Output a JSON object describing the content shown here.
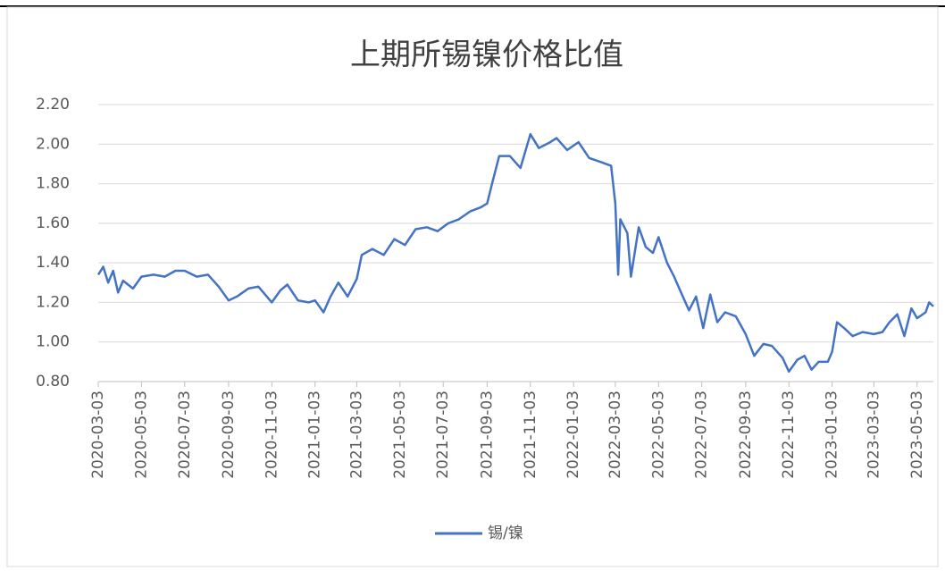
{
  "chart_data": {
    "type": "line",
    "title": "上期所锡镍价格比值",
    "x": [
      "2020-03-03",
      "2020-03-10",
      "2020-03-17",
      "2020-03-24",
      "2020-03-31",
      "2020-04-07",
      "2020-04-21",
      "2020-05-03",
      "2020-05-20",
      "2020-06-05",
      "2020-06-20",
      "2020-07-03",
      "2020-07-20",
      "2020-08-05",
      "2020-08-20",
      "2020-09-03",
      "2020-09-15",
      "2020-10-01",
      "2020-10-15",
      "2020-11-03",
      "2020-11-15",
      "2020-11-25",
      "2020-12-10",
      "2020-12-25",
      "2021-01-03",
      "2021-01-15",
      "2021-01-25",
      "2021-02-05",
      "2021-02-18",
      "2021-03-03",
      "2021-03-10",
      "2021-03-25",
      "2021-04-10",
      "2021-04-25",
      "2021-05-10",
      "2021-05-25",
      "2021-06-10",
      "2021-06-25",
      "2021-07-10",
      "2021-07-25",
      "2021-08-10",
      "2021-08-25",
      "2021-09-03",
      "2021-09-10",
      "2021-09-20",
      "2021-10-05",
      "2021-10-20",
      "2021-11-03",
      "2021-11-15",
      "2021-12-01",
      "2021-12-10",
      "2021-12-25",
      "2022-01-10",
      "2022-01-25",
      "2022-02-10",
      "2022-02-25",
      "2022-03-03",
      "2022-03-07",
      "2022-03-10",
      "2022-03-20",
      "2022-03-25",
      "2022-04-05",
      "2022-04-15",
      "2022-04-25",
      "2022-05-03",
      "2022-05-15",
      "2022-05-25",
      "2022-06-05",
      "2022-06-15",
      "2022-06-25",
      "2022-07-05",
      "2022-07-15",
      "2022-07-25",
      "2022-08-05",
      "2022-08-20",
      "2022-09-03",
      "2022-09-15",
      "2022-09-28",
      "2022-10-10",
      "2022-10-25",
      "2022-11-03",
      "2022-11-15",
      "2022-11-25",
      "2022-12-05",
      "2022-12-15",
      "2022-12-28",
      "2023-01-03",
      "2023-01-10",
      "2023-01-20",
      "2023-02-01",
      "2023-02-15",
      "2023-03-03",
      "2023-03-15",
      "2023-03-25",
      "2023-04-05",
      "2023-04-15",
      "2023-04-25",
      "2023-05-03",
      "2023-05-15",
      "2023-05-20",
      "2023-05-26"
    ],
    "series": [
      {
        "name": "锡/镍",
        "color": "#4472c4",
        "values": [
          1.34,
          1.38,
          1.3,
          1.36,
          1.25,
          1.31,
          1.27,
          1.33,
          1.34,
          1.33,
          1.36,
          1.36,
          1.33,
          1.34,
          1.28,
          1.21,
          1.23,
          1.27,
          1.28,
          1.2,
          1.26,
          1.29,
          1.21,
          1.2,
          1.21,
          1.15,
          1.23,
          1.3,
          1.23,
          1.32,
          1.44,
          1.47,
          1.44,
          1.52,
          1.49,
          1.57,
          1.58,
          1.56,
          1.6,
          1.62,
          1.66,
          1.68,
          1.7,
          1.8,
          1.94,
          1.94,
          1.88,
          2.05,
          1.98,
          2.01,
          2.03,
          1.97,
          2.01,
          1.93,
          1.91,
          1.89,
          1.7,
          1.34,
          1.62,
          1.55,
          1.33,
          1.58,
          1.48,
          1.45,
          1.53,
          1.4,
          1.33,
          1.24,
          1.16,
          1.23,
          1.07,
          1.24,
          1.1,
          1.15,
          1.13,
          1.04,
          0.93,
          0.99,
          0.98,
          0.92,
          0.85,
          0.91,
          0.93,
          0.86,
          0.9,
          0.9,
          0.95,
          1.1,
          1.07,
          1.03,
          1.05,
          1.04,
          1.05,
          1.1,
          1.14,
          1.03,
          1.17,
          1.12,
          1.15,
          1.2,
          1.18
        ]
      }
    ],
    "xlim": [
      "2020-03-03",
      "2023-05-26"
    ],
    "xticks": [
      "2020-03-03",
      "2020-05-03",
      "2020-07-03",
      "2020-09-03",
      "2020-11-03",
      "2021-01-03",
      "2021-03-03",
      "2021-05-03",
      "2021-07-03",
      "2021-09-03",
      "2021-11-03",
      "2022-01-03",
      "2022-03-03",
      "2022-05-03",
      "2022-07-03",
      "2022-09-03",
      "2022-11-03",
      "2023-01-03",
      "2023-03-03",
      "2023-05-03"
    ],
    "ylim": [
      0.8,
      2.2
    ],
    "yticks": [
      {
        "value": 0.8,
        "label": "0.80"
      },
      {
        "value": 1.0,
        "label": "1.00"
      },
      {
        "value": 1.2,
        "label": "1.20"
      },
      {
        "value": 1.4,
        "label": "1.40"
      },
      {
        "value": 1.6,
        "label": "1.60"
      },
      {
        "value": 1.8,
        "label": "1.80"
      },
      {
        "value": 2.0,
        "label": "2.00"
      },
      {
        "value": 2.2,
        "label": "2.20"
      }
    ],
    "grid": true,
    "legend": "bottom"
  }
}
